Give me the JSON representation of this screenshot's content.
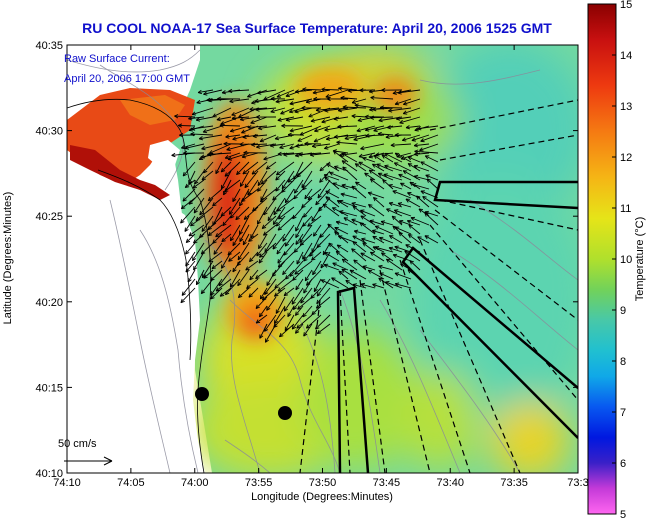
{
  "title": "RU COOL  NOAA-17  Sea Surface Temperature:  April 20, 2006 1525 GMT",
  "overlay": {
    "current_label": "Raw Surface Current:",
    "current_time": "April 20, 2006 17:00 GMT",
    "scale_label": "50 cm/s"
  },
  "axes": {
    "xlabel": "Longitude (Degrees:Minutes)",
    "ylabel": "Latitude (Degrees:Minutes)",
    "x_ticks": [
      "74:10",
      "74:05",
      "74:00",
      "73:55",
      "73:50",
      "73:45",
      "73:40",
      "73:35",
      "73:3"
    ],
    "y_ticks": [
      "40:35",
      "40:30",
      "40:25",
      "40:20",
      "40:15",
      "40:10"
    ]
  },
  "colorbar": {
    "label": "Temperature (°C)",
    "ticks": [
      "15",
      "14",
      "13",
      "12",
      "11",
      "10",
      "9",
      "8",
      "7",
      "6",
      "5"
    ]
  },
  "colors": {
    "title": "#1010cc",
    "land": "#ffffff",
    "contour": "#8a8a9a"
  }
}
